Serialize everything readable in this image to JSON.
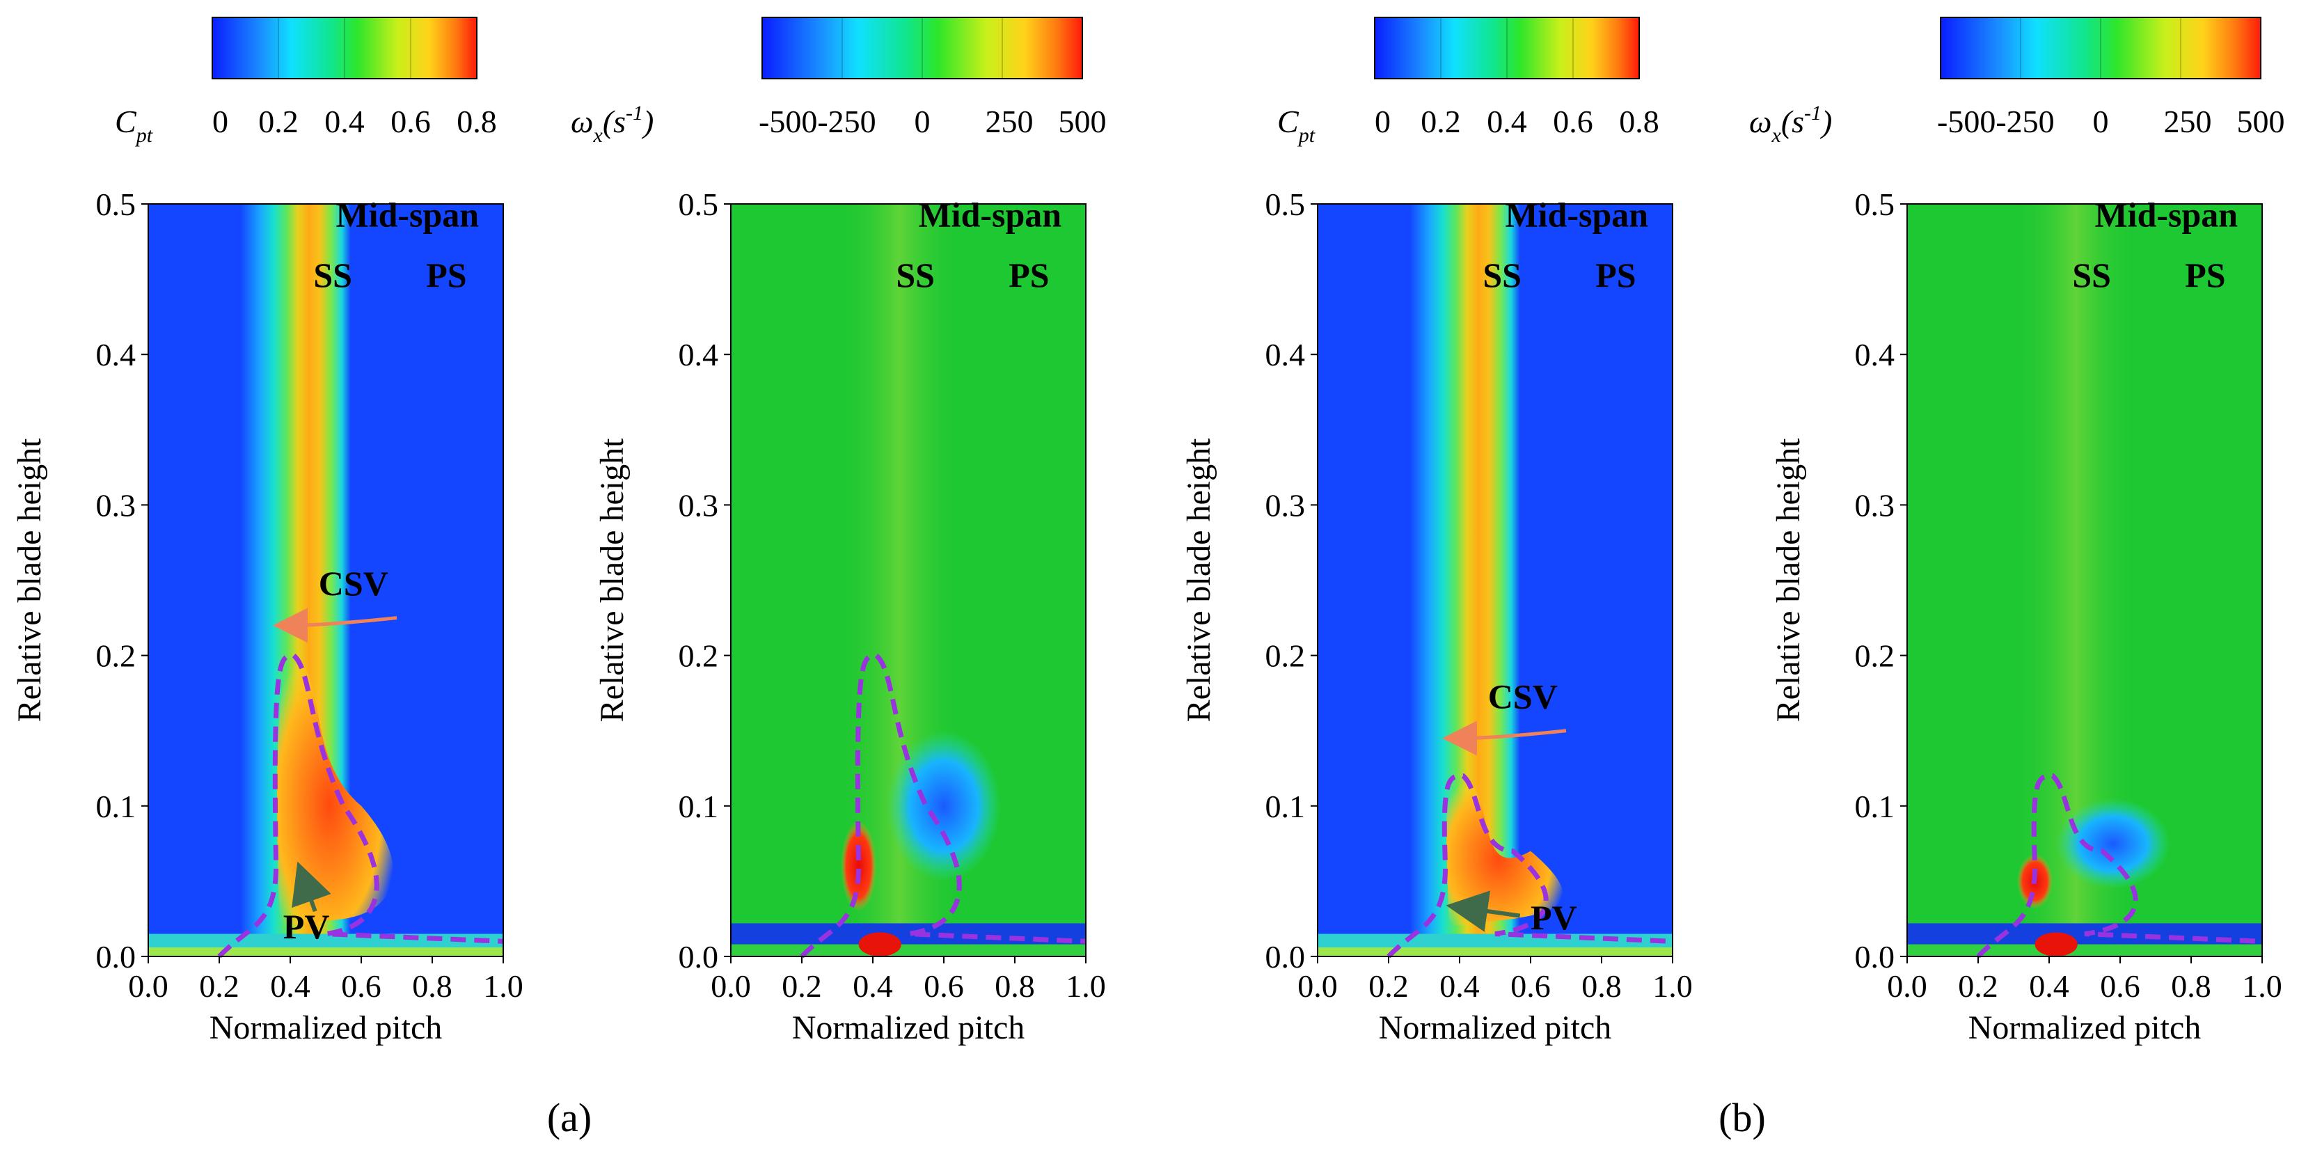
{
  "colors": {
    "ss_ps_label": "#e8141b",
    "csv_arrow": "#f0825a",
    "pv_arrow": "#3f6b4a",
    "contour": "#9933e0",
    "background_field_cpt": "#1446ff",
    "background_field_vort": "#1ec832"
  },
  "colormaps": {
    "cpt": {
      "name_base": "C",
      "name_sub": "pt",
      "range": [
        0,
        0.8
      ],
      "ticks": [
        "0",
        "0.2",
        "0.4",
        "0.6",
        "0.8"
      ]
    },
    "vort": {
      "name_base": "ω",
      "name_sub": "x",
      "name_unit": "(s",
      "name_unit_sup": "-1",
      "name_unit_close": ")",
      "range": [
        -500,
        500
      ],
      "tick_joined": "-500-250",
      "ticks": [
        "0",
        "250",
        "500"
      ]
    }
  },
  "subfigure_labels": [
    "(a)",
    "(b)"
  ],
  "chart_data": [
    {
      "id": "a-cpt",
      "type": "heatmap",
      "field": "total pressure loss coefficient C_pt",
      "xlabel": "Normalized pitch",
      "ylabel": "Relative blade height",
      "xlim": [
        0,
        1
      ],
      "ylim": [
        0,
        0.5
      ],
      "xticks": [
        "0.0",
        "0.2",
        "0.4",
        "0.6",
        "0.8",
        "1.0"
      ],
      "yticks": [
        "0.0",
        "0.1",
        "0.2",
        "0.3",
        "0.4",
        "0.5"
      ],
      "annotations": {
        "title": "Mid-span",
        "ss": "SS",
        "ps": "PS",
        "csv": "CSV",
        "pv": "PV"
      }
    },
    {
      "id": "a-vort",
      "type": "heatmap",
      "field": "streamwise vorticity omega_x",
      "xlabel": "Normalized pitch",
      "ylabel": "Relative blade height",
      "xlim": [
        0,
        1
      ],
      "ylim": [
        0,
        0.5
      ],
      "xticks": [
        "0.0",
        "0.2",
        "0.4",
        "0.6",
        "0.8",
        "1.0"
      ],
      "yticks": [
        "0.0",
        "0.1",
        "0.2",
        "0.3",
        "0.4",
        "0.5"
      ],
      "annotations": {
        "title": "Mid-span",
        "ss": "SS",
        "ps": "PS"
      }
    },
    {
      "id": "b-cpt",
      "type": "heatmap",
      "field": "total pressure loss coefficient C_pt",
      "xlabel": "Normalized pitch",
      "ylabel": "Relative blade height",
      "xlim": [
        0,
        1
      ],
      "ylim": [
        0,
        0.5
      ],
      "xticks": [
        "0.0",
        "0.2",
        "0.4",
        "0.6",
        "0.8",
        "1.0"
      ],
      "yticks": [
        "0.0",
        "0.1",
        "0.2",
        "0.3",
        "0.4",
        "0.5"
      ],
      "annotations": {
        "title": "Mid-span",
        "ss": "SS",
        "ps": "PS",
        "csv": "CSV",
        "pv": "PV"
      }
    },
    {
      "id": "b-vort",
      "type": "heatmap",
      "field": "streamwise vorticity omega_x",
      "xlabel": "Normalized pitch",
      "ylabel": "Relative blade height",
      "xlim": [
        0,
        1
      ],
      "ylim": [
        0,
        0.5
      ],
      "xticks": [
        "0.0",
        "0.2",
        "0.4",
        "0.6",
        "0.8",
        "1.0"
      ],
      "yticks": [
        "0.0",
        "0.1",
        "0.2",
        "0.3",
        "0.4",
        "0.5"
      ],
      "annotations": {
        "title": "Mid-span",
        "ss": "SS",
        "ps": "PS"
      }
    }
  ]
}
